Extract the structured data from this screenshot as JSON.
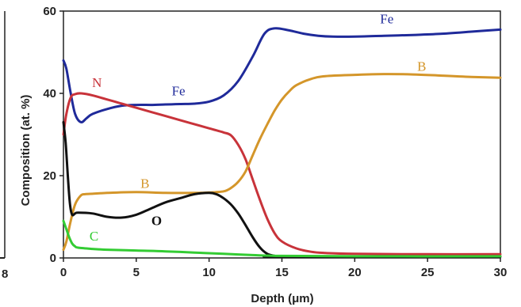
{
  "chart_data": {
    "type": "line",
    "xlabel": "Depth (μm)",
    "ylabel": "Composition (at. %)",
    "xlim": [
      0,
      30
    ],
    "ylim": [
      0,
      60
    ],
    "x_ticks": [
      0,
      5,
      10,
      15,
      20,
      25,
      30
    ],
    "y_ticks": [
      0,
      20,
      40,
      60
    ],
    "grid": false,
    "legend": "none",
    "left_edge_label": "8",
    "series": [
      {
        "name": "Fe",
        "color": "#1f2a9a",
        "label_positions": [
          [
            7.9,
            39.5
          ],
          [
            22.2,
            57.0
          ]
        ],
        "points": [
          [
            0,
            48
          ],
          [
            0.2,
            46
          ],
          [
            0.5,
            40
          ],
          [
            0.8,
            35
          ],
          [
            1.2,
            33
          ],
          [
            1.6,
            34
          ],
          [
            2,
            35
          ],
          [
            3,
            36.2
          ],
          [
            4,
            37
          ],
          [
            5,
            37.2
          ],
          [
            6,
            37.2
          ],
          [
            7,
            37.3
          ],
          [
            8,
            37.4
          ],
          [
            9,
            37.5
          ],
          [
            10,
            38
          ],
          [
            11,
            39.5
          ],
          [
            12,
            43
          ],
          [
            13,
            49
          ],
          [
            13.8,
            54.5
          ],
          [
            14.5,
            55.8
          ],
          [
            15.5,
            55.3
          ],
          [
            16.5,
            54.5
          ],
          [
            17.5,
            54
          ],
          [
            18.5,
            53.8
          ],
          [
            20,
            53.8
          ],
          [
            22,
            54
          ],
          [
            24,
            54.2
          ],
          [
            26,
            54.5
          ],
          [
            28,
            55
          ],
          [
            30,
            55.5
          ]
        ]
      },
      {
        "name": "N",
        "color": "#c8333a",
        "label_positions": [
          [
            2.3,
            41.5
          ]
        ],
        "points": [
          [
            0,
            30
          ],
          [
            0.2,
            35
          ],
          [
            0.5,
            39
          ],
          [
            0.8,
            39.8
          ],
          [
            1.2,
            40
          ],
          [
            2,
            39.5
          ],
          [
            4,
            37.5
          ],
          [
            6,
            35.5
          ],
          [
            8,
            33.5
          ],
          [
            10,
            31.5
          ],
          [
            11,
            30.5
          ],
          [
            11.5,
            29.8
          ],
          [
            12,
            27.5
          ],
          [
            12.5,
            24
          ],
          [
            13,
            19
          ],
          [
            13.5,
            14
          ],
          [
            14,
            9.5
          ],
          [
            14.5,
            6
          ],
          [
            15,
            4
          ],
          [
            16,
            2.3
          ],
          [
            17,
            1.5
          ],
          [
            18,
            1.2
          ],
          [
            20,
            1
          ],
          [
            25,
            0.9
          ],
          [
            30,
            0.9
          ]
        ]
      },
      {
        "name": "B",
        "color": "#d4962a",
        "label_positions": [
          [
            5.6,
            17.0
          ],
          [
            24.6,
            45.5
          ]
        ],
        "points": [
          [
            0,
            2
          ],
          [
            0.2,
            4
          ],
          [
            0.5,
            9
          ],
          [
            0.8,
            13
          ],
          [
            1.2,
            15.2
          ],
          [
            1.5,
            15.5
          ],
          [
            2,
            15.6
          ],
          [
            3,
            15.8
          ],
          [
            5,
            16
          ],
          [
            7,
            15.8
          ],
          [
            9,
            15.8
          ],
          [
            10,
            15.9
          ],
          [
            11,
            16.2
          ],
          [
            11.5,
            17
          ],
          [
            12,
            18.5
          ],
          [
            12.5,
            21
          ],
          [
            13,
            25
          ],
          [
            13.5,
            29
          ],
          [
            14,
            32.5
          ],
          [
            14.5,
            35.8
          ],
          [
            15,
            38.5
          ],
          [
            15.5,
            40.5
          ],
          [
            16,
            42
          ],
          [
            17,
            43.5
          ],
          [
            18,
            44.2
          ],
          [
            20,
            44.5
          ],
          [
            22,
            44.7
          ],
          [
            24,
            44.6
          ],
          [
            26,
            44.3
          ],
          [
            28,
            44
          ],
          [
            30,
            43.8
          ]
        ]
      },
      {
        "name": "O",
        "color": "#111111",
        "label_positions": [
          [
            6.4,
            8.0
          ]
        ],
        "points": [
          [
            0,
            33
          ],
          [
            0.15,
            28
          ],
          [
            0.3,
            20
          ],
          [
            0.45,
            13
          ],
          [
            0.6,
            10.5
          ],
          [
            0.8,
            10.8
          ],
          [
            1,
            11
          ],
          [
            2,
            10.8
          ],
          [
            3,
            10
          ],
          [
            4,
            9.8
          ],
          [
            5,
            10.5
          ],
          [
            6,
            12
          ],
          [
            7,
            13.5
          ],
          [
            8,
            14.5
          ],
          [
            9,
            15.5
          ],
          [
            10,
            15.8
          ],
          [
            10.5,
            15.5
          ],
          [
            11,
            14.5
          ],
          [
            11.5,
            13
          ],
          [
            12,
            10.8
          ],
          [
            12.5,
            8
          ],
          [
            13,
            5
          ],
          [
            13.5,
            2.5
          ],
          [
            14,
            1
          ],
          [
            14.5,
            0.5
          ],
          [
            15,
            0.3
          ],
          [
            30,
            0.3
          ]
        ]
      },
      {
        "name": "C",
        "color": "#33cc33",
        "label_positions": [
          [
            2.1,
            4.2
          ]
        ],
        "points": [
          [
            0,
            9
          ],
          [
            0.2,
            7
          ],
          [
            0.4,
            5
          ],
          [
            0.6,
            3.5
          ],
          [
            0.8,
            2.8
          ],
          [
            1,
            2.5
          ],
          [
            2,
            2.2
          ],
          [
            3,
            2
          ],
          [
            5,
            1.8
          ],
          [
            7,
            1.6
          ],
          [
            9,
            1.3
          ],
          [
            11,
            1
          ],
          [
            13,
            0.7
          ],
          [
            15,
            0.5
          ],
          [
            20,
            0.4
          ],
          [
            30,
            0.4
          ]
        ]
      }
    ]
  }
}
